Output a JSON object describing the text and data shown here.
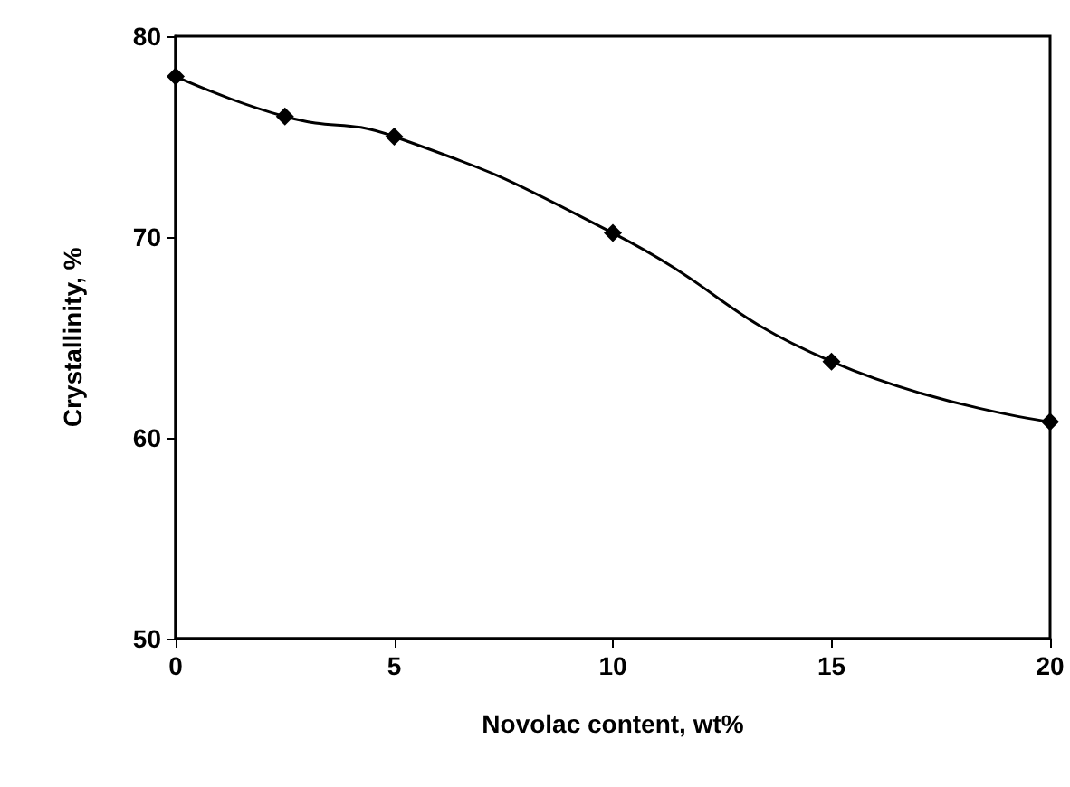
{
  "chart_data": {
    "type": "line",
    "xlabel": "Novolac content, wt%",
    "ylabel": "Crystallinity, %",
    "x": [
      0,
      2.5,
      5,
      10,
      15,
      20
    ],
    "series": [
      {
        "color": "#000000",
        "values": [
          78,
          76,
          75,
          70.2,
          63.8,
          60.8
        ]
      }
    ],
    "xlim": [
      0,
      20
    ],
    "xticks": [
      0,
      5,
      10,
      15,
      20
    ],
    "ylim": [
      50,
      80
    ],
    "yticks": [
      50,
      60,
      70,
      80
    ],
    "grid": false,
    "marker": "diamond",
    "line_style": "solid"
  }
}
